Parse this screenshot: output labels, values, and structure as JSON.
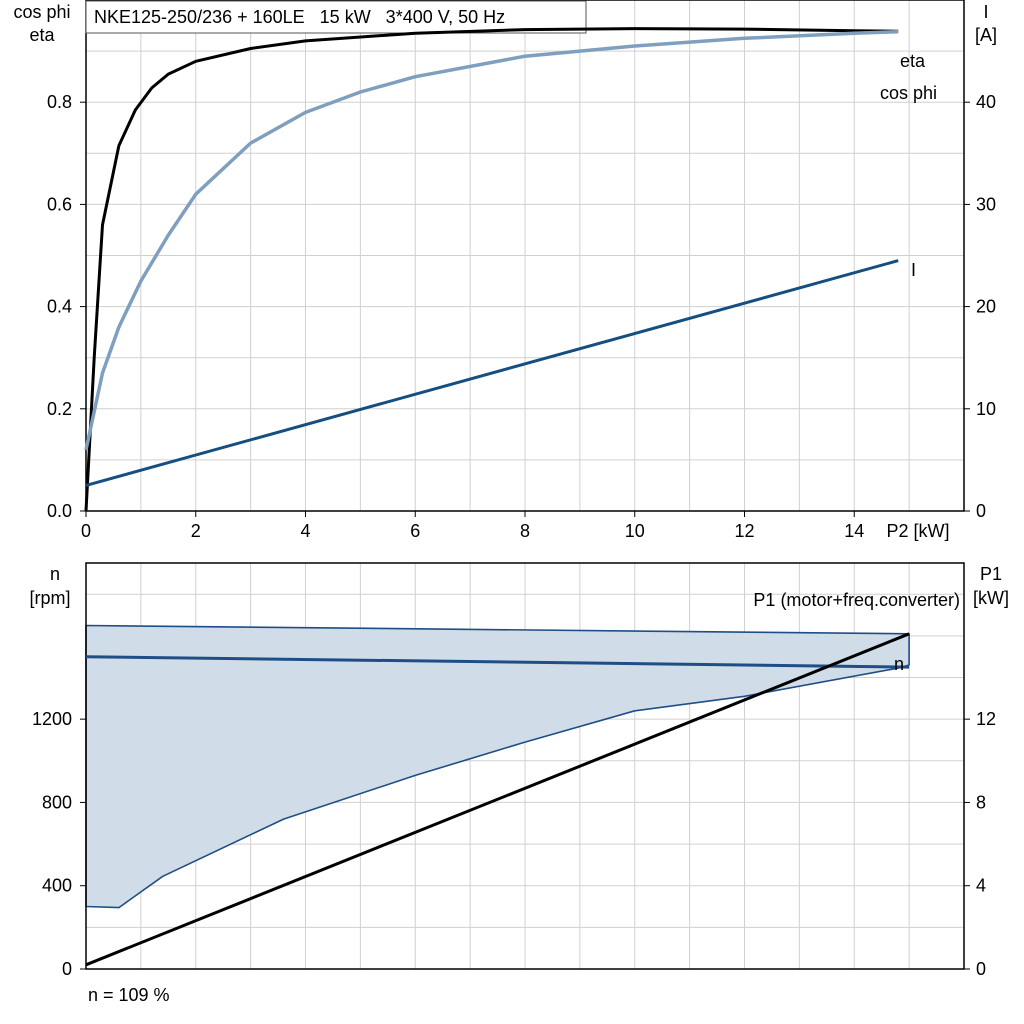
{
  "colors": {
    "eta": "#000000",
    "cos_phi": "#7f9fbf",
    "current": "#154e80",
    "speed": "#1f4e86",
    "speed_fill": "#d0dce8",
    "p1": "#000000",
    "grid": "#d0d0d0"
  },
  "chart_data": [
    {
      "type": "line",
      "title": "NKE125-250/236 + 160LE   15 kW   3*400 V, 50 Hz",
      "xlabel": "P2 [kW]",
      "ylabel_left": [
        "cos phi",
        "eta"
      ],
      "ylabel_right": [
        "I",
        "[A]"
      ],
      "xlim": [
        0,
        16
      ],
      "ylim_left": [
        0,
        1.0
      ],
      "ylim_right": [
        0,
        50
      ],
      "x_ticks": [
        "0",
        "2",
        "4",
        "6",
        "8",
        "10",
        "12",
        "14"
      ],
      "y_ticks_left": [
        "0.0",
        "0.2",
        "0.4",
        "0.6",
        "0.8"
      ],
      "y_ticks_right": [
        "0",
        "10",
        "20",
        "30",
        "40"
      ],
      "grid": true,
      "series": [
        {
          "name": "eta",
          "axis": "left",
          "x": [
            0.0,
            0.15,
            0.3,
            0.6,
            0.9,
            1.2,
            1.5,
            2.0,
            3.0,
            4.0,
            6.0,
            8.0,
            10.0,
            12.0,
            14.0,
            14.8
          ],
          "y": [
            0.0,
            0.3,
            0.56,
            0.715,
            0.785,
            0.828,
            0.855,
            0.88,
            0.905,
            0.92,
            0.935,
            0.942,
            0.944,
            0.943,
            0.94,
            0.939
          ]
        },
        {
          "name": "cos phi",
          "axis": "left",
          "x": [
            0.0,
            0.3,
            0.6,
            1.0,
            1.5,
            2.0,
            3.0,
            4.0,
            5.0,
            6.0,
            8.0,
            10.0,
            12.0,
            14.0,
            14.8
          ],
          "y": [
            0.12,
            0.27,
            0.36,
            0.45,
            0.54,
            0.62,
            0.72,
            0.78,
            0.82,
            0.85,
            0.89,
            0.91,
            0.925,
            0.935,
            0.938
          ]
        },
        {
          "name": "I",
          "axis": "right",
          "x": [
            0.0,
            14.8
          ],
          "y": [
            2.5,
            24.5
          ]
        }
      ]
    },
    {
      "type": "area",
      "xlabel": "",
      "ylabel_left": [
        "n",
        "[rpm]"
      ],
      "ylabel_right": [
        "P1",
        "[kW]"
      ],
      "xlim": [
        0,
        16
      ],
      "ylim_left": [
        0,
        1950
      ],
      "ylim_right": [
        0,
        19.5
      ],
      "y_ticks_left": [
        "0",
        "400",
        "800",
        "1200"
      ],
      "y_ticks_right": [
        "0",
        "4",
        "8",
        "12"
      ],
      "grid": true,
      "footnote": "n = 109 %",
      "region": {
        "x": [
          0.0,
          15.0,
          15.0,
          14.8,
          12.0,
          10.0,
          8.0,
          6.0,
          3.6,
          1.4,
          0.6,
          0.0
        ],
        "y": [
          1650,
          1610,
          1460,
          1445,
          1310,
          1240,
          1090,
          930,
          720,
          445,
          295,
          300
        ]
      },
      "series": [
        {
          "name": "n",
          "axis": "left",
          "x": [
            0.0,
            15.0
          ],
          "y": [
            1500,
            1450
          ]
        },
        {
          "name": "P1 (motor+freq.converter)",
          "axis": "right",
          "x": [
            0.0,
            15.0
          ],
          "y": [
            0.2,
            16.1
          ]
        }
      ]
    }
  ]
}
